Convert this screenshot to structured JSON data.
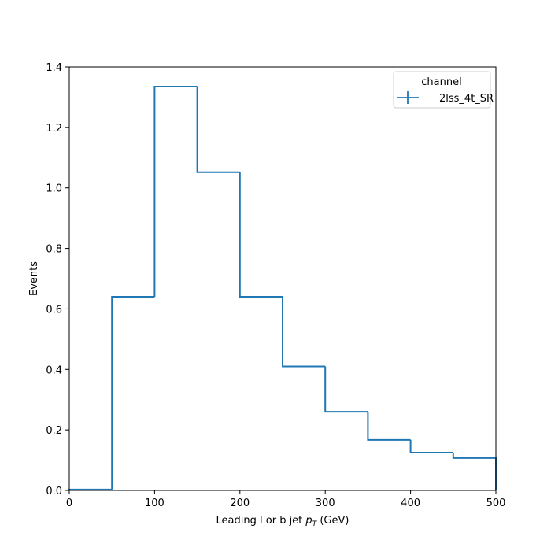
{
  "chart_data": {
    "type": "step",
    "xlabel_prefix": "Leading l or b jet ",
    "xlabel_var": "p",
    "xlabel_sub": "T",
    "xlabel_suffix": " (GeV)",
    "ylabel": "Events",
    "xlim": [
      0,
      500
    ],
    "ylim": [
      0,
      1.4
    ],
    "xticks": [
      0,
      100,
      200,
      300,
      400,
      500
    ],
    "yticks": [
      0.0,
      0.2,
      0.4,
      0.6,
      0.8,
      1.0,
      1.2,
      1.4
    ],
    "ytick_labels": [
      "0.0",
      "0.2",
      "0.4",
      "0.6",
      "0.8",
      "1.0",
      "1.2",
      "1.4"
    ],
    "grid": false,
    "legend": {
      "title": "channel",
      "location": "upper right"
    },
    "bin_edges": [
      0,
      50,
      100,
      150,
      200,
      250,
      300,
      350,
      400,
      450,
      500
    ],
    "series": [
      {
        "name": "2lss_4t_SR",
        "color": "#1f77b4",
        "values": [
          0.003,
          0.64,
          1.335,
          1.052,
          0.64,
          0.41,
          0.26,
          0.167,
          0.125,
          0.107
        ]
      }
    ]
  }
}
